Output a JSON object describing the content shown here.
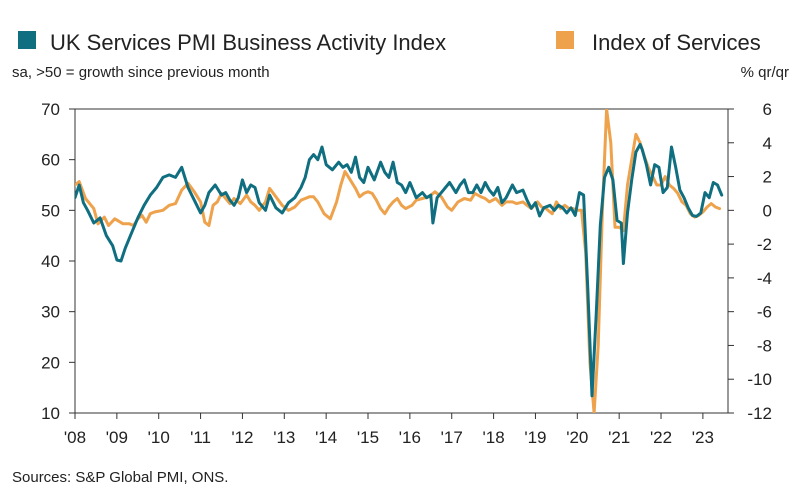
{
  "chart_data": {
    "type": "line",
    "legend": [
      {
        "name": "UK Services PMI Business Activity Index",
        "color": "#0f6e7f",
        "axis": "left"
      },
      {
        "name": "Index of Services",
        "color": "#eea24c",
        "axis": "right"
      }
    ],
    "subtitle_left": "sa, >50 = growth since previous month",
    "subtitle_right": "% qr/qr",
    "source": "Sources: S&P Global PMI, ONS.",
    "x_labels": [
      "'08",
      "'09",
      "'10",
      "'11",
      "'12",
      "'13",
      "'14",
      "'15",
      "'16",
      "'17",
      "'18",
      "'19",
      "'20",
      "'21",
      "'22",
      "'23"
    ],
    "x_range": [
      2008.0,
      2023.6
    ],
    "y_left": {
      "range": [
        10,
        70
      ],
      "ticks": [
        10,
        20,
        30,
        40,
        50,
        60,
        70
      ]
    },
    "y_right": {
      "range": [
        -12,
        6
      ],
      "ticks": [
        -12,
        -10,
        -8,
        -6,
        -4,
        -2,
        0,
        2,
        4,
        6
      ]
    },
    "series": [
      {
        "name": "UK Services PMI Business Activity Index",
        "axis": "left",
        "color": "#0f6e7f",
        "points": [
          [
            2008.0,
            52.5
          ],
          [
            2008.1,
            55.0
          ],
          [
            2008.2,
            51.5
          ],
          [
            2008.3,
            50.0
          ],
          [
            2008.45,
            47.5
          ],
          [
            2008.6,
            48.5
          ],
          [
            2008.75,
            45.0
          ],
          [
            2008.9,
            43.0
          ],
          [
            2009.0,
            40.2
          ],
          [
            2009.1,
            40.0
          ],
          [
            2009.2,
            42.5
          ],
          [
            2009.35,
            45.5
          ],
          [
            2009.5,
            48.5
          ],
          [
            2009.65,
            51.0
          ],
          [
            2009.8,
            53.0
          ],
          [
            2009.95,
            54.5
          ],
          [
            2010.1,
            56.5
          ],
          [
            2010.25,
            57.0
          ],
          [
            2010.4,
            56.5
          ],
          [
            2010.55,
            58.5
          ],
          [
            2010.7,
            54.5
          ],
          [
            2010.85,
            52.0
          ],
          [
            2011.0,
            49.5
          ],
          [
            2011.1,
            51.0
          ],
          [
            2011.2,
            53.5
          ],
          [
            2011.35,
            55.0
          ],
          [
            2011.5,
            53.0
          ],
          [
            2011.6,
            53.5
          ],
          [
            2011.7,
            52.0
          ],
          [
            2011.8,
            51.0
          ],
          [
            2011.9,
            52.5
          ],
          [
            2012.0,
            56.0
          ],
          [
            2012.1,
            53.5
          ],
          [
            2012.2,
            55.0
          ],
          [
            2012.3,
            54.5
          ],
          [
            2012.4,
            51.5
          ],
          [
            2012.55,
            50.0
          ],
          [
            2012.65,
            53.0
          ],
          [
            2012.8,
            50.5
          ],
          [
            2012.95,
            49.5
          ],
          [
            2013.1,
            51.5
          ],
          [
            2013.25,
            52.5
          ],
          [
            2013.4,
            54.5
          ],
          [
            2013.5,
            56.5
          ],
          [
            2013.6,
            60.0
          ],
          [
            2013.7,
            61.0
          ],
          [
            2013.8,
            60.0
          ],
          [
            2013.9,
            62.5
          ],
          [
            2014.0,
            59.0
          ],
          [
            2014.15,
            58.0
          ],
          [
            2014.3,
            59.5
          ],
          [
            2014.4,
            58.5
          ],
          [
            2014.5,
            59.0
          ],
          [
            2014.6,
            57.5
          ],
          [
            2014.7,
            60.5
          ],
          [
            2014.8,
            56.5
          ],
          [
            2014.9,
            55.5
          ],
          [
            2015.0,
            58.5
          ],
          [
            2015.15,
            56.0
          ],
          [
            2015.3,
            59.5
          ],
          [
            2015.4,
            57.5
          ],
          [
            2015.5,
            56.5
          ],
          [
            2015.6,
            59.5
          ],
          [
            2015.7,
            55.5
          ],
          [
            2015.8,
            55.0
          ],
          [
            2015.9,
            53.5
          ],
          [
            2016.0,
            55.5
          ],
          [
            2016.15,
            52.5
          ],
          [
            2016.3,
            53.5
          ],
          [
            2016.4,
            52.5
          ],
          [
            2016.5,
            53.0
          ],
          [
            2016.55,
            47.5
          ],
          [
            2016.65,
            52.5
          ],
          [
            2016.8,
            54.0
          ],
          [
            2016.95,
            55.5
          ],
          [
            2017.1,
            53.5
          ],
          [
            2017.2,
            55.0
          ],
          [
            2017.3,
            56.0
          ],
          [
            2017.4,
            53.5
          ],
          [
            2017.5,
            53.5
          ],
          [
            2017.6,
            55.0
          ],
          [
            2017.7,
            53.5
          ],
          [
            2017.8,
            55.5
          ],
          [
            2017.9,
            54.0
          ],
          [
            2018.0,
            53.0
          ],
          [
            2018.1,
            54.5
          ],
          [
            2018.2,
            51.5
          ],
          [
            2018.3,
            52.5
          ],
          [
            2018.45,
            55.0
          ],
          [
            2018.55,
            53.5
          ],
          [
            2018.7,
            54.0
          ],
          [
            2018.8,
            52.0
          ],
          [
            2018.9,
            50.4
          ],
          [
            2019.0,
            51.5
          ],
          [
            2019.1,
            48.9
          ],
          [
            2019.2,
            50.5
          ],
          [
            2019.35,
            51.0
          ],
          [
            2019.45,
            50.0
          ],
          [
            2019.55,
            51.0
          ],
          [
            2019.65,
            50.5
          ],
          [
            2019.75,
            49.5
          ],
          [
            2019.85,
            50.5
          ],
          [
            2019.95,
            49.0
          ],
          [
            2020.05,
            53.5
          ],
          [
            2020.15,
            53.0
          ],
          [
            2020.25,
            34.5
          ],
          [
            2020.35,
            13.4
          ],
          [
            2020.45,
            29.0
          ],
          [
            2020.55,
            47.0
          ],
          [
            2020.65,
            56.5
          ],
          [
            2020.75,
            58.5
          ],
          [
            2020.85,
            56.0
          ],
          [
            2020.95,
            48.0
          ],
          [
            2021.05,
            47.5
          ],
          [
            2021.1,
            39.5
          ],
          [
            2021.2,
            49.5
          ],
          [
            2021.3,
            56.0
          ],
          [
            2021.4,
            61.5
          ],
          [
            2021.5,
            63.0
          ],
          [
            2021.55,
            62.0
          ],
          [
            2021.65,
            59.0
          ],
          [
            2021.75,
            55.0
          ],
          [
            2021.85,
            59.0
          ],
          [
            2021.95,
            58.5
          ],
          [
            2022.05,
            53.5
          ],
          [
            2022.15,
            54.5
          ],
          [
            2022.25,
            62.5
          ],
          [
            2022.35,
            58.5
          ],
          [
            2022.45,
            54.0
          ],
          [
            2022.55,
            52.5
          ],
          [
            2022.65,
            50.5
          ],
          [
            2022.75,
            49.0
          ],
          [
            2022.85,
            48.8
          ],
          [
            2022.95,
            49.5
          ],
          [
            2023.05,
            53.5
          ],
          [
            2023.15,
            52.5
          ],
          [
            2023.25,
            55.5
          ],
          [
            2023.35,
            55.0
          ],
          [
            2023.45,
            53.0
          ]
        ]
      },
      {
        "name": "Index of Services",
        "axis": "right",
        "color": "#eea24c",
        "points": [
          [
            2008.0,
            1.5
          ],
          [
            2008.1,
            1.7
          ],
          [
            2008.25,
            0.7
          ],
          [
            2008.45,
            0.1
          ],
          [
            2008.55,
            -0.8
          ],
          [
            2008.7,
            -0.4
          ],
          [
            2008.8,
            -0.9
          ],
          [
            2008.95,
            -0.5
          ],
          [
            2009.15,
            -0.8
          ],
          [
            2009.3,
            -0.8
          ],
          [
            2009.4,
            -0.9
          ],
          [
            2009.5,
            -0.5
          ],
          [
            2009.6,
            -0.3
          ],
          [
            2009.7,
            -0.7
          ],
          [
            2009.8,
            -0.2
          ],
          [
            2009.9,
            -0.1
          ],
          [
            2010.1,
            0.0
          ],
          [
            2010.25,
            0.3
          ],
          [
            2010.4,
            0.4
          ],
          [
            2010.55,
            1.2
          ],
          [
            2010.7,
            1.6
          ],
          [
            2010.85,
            1.1
          ],
          [
            2011.0,
            0.5
          ],
          [
            2011.1,
            -0.7
          ],
          [
            2011.2,
            -0.9
          ],
          [
            2011.3,
            0.3
          ],
          [
            2011.4,
            0.5
          ],
          [
            2011.5,
            1.0
          ],
          [
            2011.6,
            0.7
          ],
          [
            2011.7,
            0.4
          ],
          [
            2011.8,
            0.7
          ],
          [
            2011.95,
            0.4
          ],
          [
            2012.1,
            0.9
          ],
          [
            2012.2,
            0.5
          ],
          [
            2012.3,
            0.3
          ],
          [
            2012.4,
            0.0
          ],
          [
            2012.55,
            0.5
          ],
          [
            2012.65,
            1.3
          ],
          [
            2012.8,
            0.8
          ],
          [
            2012.95,
            0.3
          ],
          [
            2013.1,
            0.0
          ],
          [
            2013.25,
            0.2
          ],
          [
            2013.4,
            0.6
          ],
          [
            2013.5,
            0.7
          ],
          [
            2013.6,
            0.8
          ],
          [
            2013.7,
            0.8
          ],
          [
            2013.8,
            0.5
          ],
          [
            2013.95,
            -0.2
          ],
          [
            2014.1,
            -0.5
          ],
          [
            2014.25,
            0.5
          ],
          [
            2014.35,
            1.5
          ],
          [
            2014.45,
            2.3
          ],
          [
            2014.55,
            1.9
          ],
          [
            2014.7,
            1.3
          ],
          [
            2014.8,
            0.8
          ],
          [
            2014.9,
            1.0
          ],
          [
            2015.0,
            1.1
          ],
          [
            2015.1,
            1.0
          ],
          [
            2015.2,
            0.6
          ],
          [
            2015.3,
            0.1
          ],
          [
            2015.4,
            -0.2
          ],
          [
            2015.5,
            0.2
          ],
          [
            2015.6,
            0.5
          ],
          [
            2015.7,
            0.7
          ],
          [
            2015.8,
            0.3
          ],
          [
            2015.9,
            0.1
          ],
          [
            2016.05,
            0.3
          ],
          [
            2016.15,
            0.6
          ],
          [
            2016.3,
            0.7
          ],
          [
            2016.45,
            0.8
          ],
          [
            2016.6,
            1.1
          ],
          [
            2016.75,
            0.8
          ],
          [
            2016.9,
            0.2
          ],
          [
            2017.0,
            0.0
          ],
          [
            2017.15,
            0.5
          ],
          [
            2017.3,
            0.7
          ],
          [
            2017.45,
            0.6
          ],
          [
            2017.55,
            1.0
          ],
          [
            2017.7,
            0.8
          ],
          [
            2017.8,
            0.7
          ],
          [
            2017.9,
            0.5
          ],
          [
            2018.05,
            0.7
          ],
          [
            2018.2,
            0.3
          ],
          [
            2018.3,
            0.5
          ],
          [
            2018.45,
            0.5
          ],
          [
            2018.55,
            0.4
          ],
          [
            2018.7,
            0.5
          ],
          [
            2018.8,
            0.3
          ],
          [
            2018.9,
            0.1
          ],
          [
            2019.05,
            0.5
          ],
          [
            2019.15,
            0.2
          ],
          [
            2019.25,
            0.1
          ],
          [
            2019.4,
            -0.2
          ],
          [
            2019.5,
            0.5
          ],
          [
            2019.6,
            0.1
          ],
          [
            2019.7,
            0.3
          ],
          [
            2019.8,
            0.1
          ],
          [
            2019.9,
            0.1
          ],
          [
            2020.0,
            0.0
          ],
          [
            2020.1,
            0.0
          ],
          [
            2020.2,
            -2.5
          ],
          [
            2020.3,
            -9.0
          ],
          [
            2020.4,
            -12.0
          ],
          [
            2020.5,
            -8.0
          ],
          [
            2020.6,
            0.0
          ],
          [
            2020.7,
            6.0
          ],
          [
            2020.8,
            4.0
          ],
          [
            2020.9,
            -1.0
          ],
          [
            2021.0,
            -1.0
          ],
          [
            2021.1,
            -1.2
          ],
          [
            2021.2,
            1.5
          ],
          [
            2021.3,
            3.0
          ],
          [
            2021.4,
            4.5
          ],
          [
            2021.5,
            4.0
          ],
          [
            2021.6,
            3.2
          ],
          [
            2021.7,
            2.5
          ],
          [
            2021.8,
            2.0
          ],
          [
            2021.9,
            1.5
          ],
          [
            2022.0,
            1.5
          ],
          [
            2022.1,
            2.0
          ],
          [
            2022.2,
            1.5
          ],
          [
            2022.3,
            1.3
          ],
          [
            2022.4,
            1.0
          ],
          [
            2022.5,
            0.5
          ],
          [
            2022.6,
            0.3
          ],
          [
            2022.7,
            -0.2
          ],
          [
            2022.8,
            -0.4
          ],
          [
            2022.9,
            -0.3
          ],
          [
            2023.0,
            -0.1
          ],
          [
            2023.1,
            0.2
          ],
          [
            2023.2,
            0.4
          ],
          [
            2023.3,
            0.2
          ],
          [
            2023.4,
            0.1
          ]
        ]
      }
    ]
  }
}
